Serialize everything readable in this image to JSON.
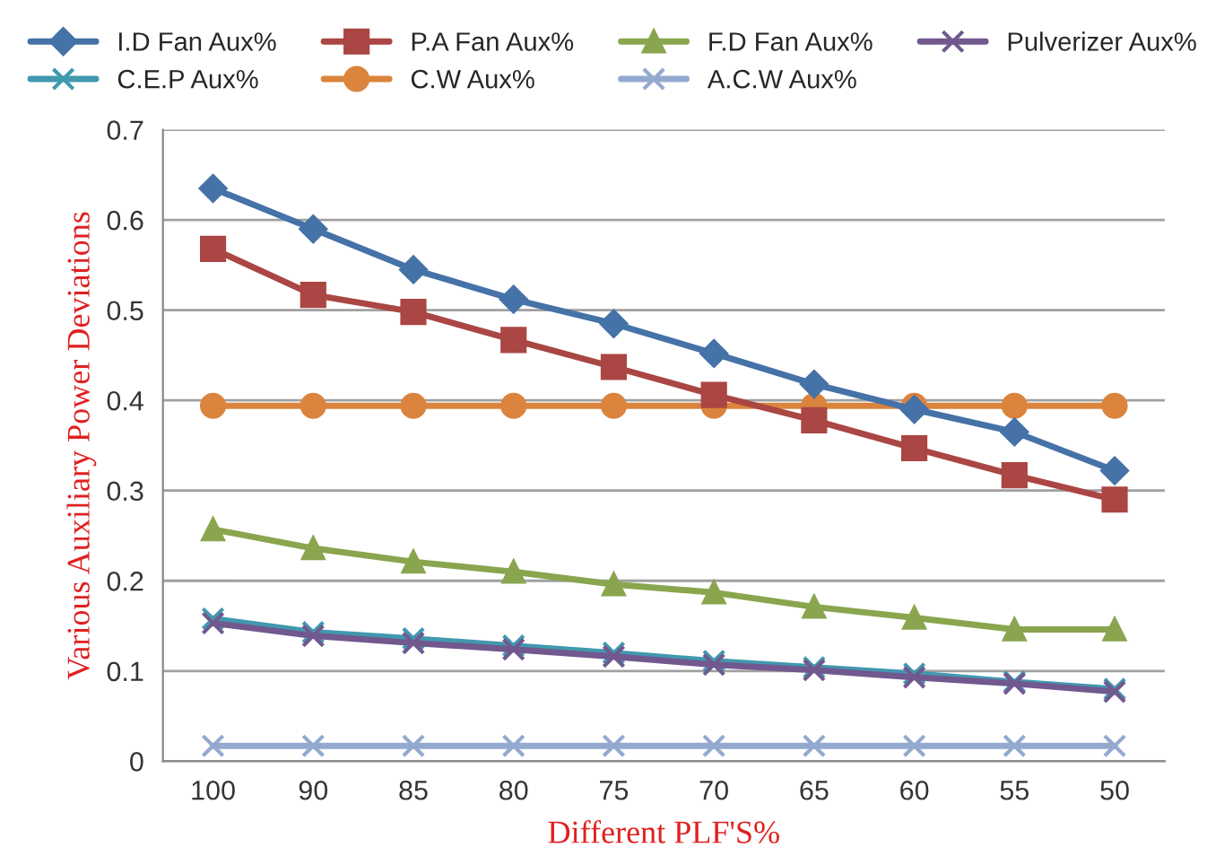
{
  "chart_data": {
    "type": "line",
    "xlabel": "Different PLF'S%",
    "ylabel": "Various Auxiliary Power Deviations",
    "categories": [
      "100",
      "90",
      "85",
      "80",
      "75",
      "70",
      "65",
      "60",
      "55",
      "50"
    ],
    "series": [
      {
        "name": "I.D Fan Aux%",
        "color": "#4572a7",
        "marker": "diamond",
        "values": [
          0.635,
          0.59,
          0.545,
          0.512,
          0.485,
          0.452,
          0.418,
          0.39,
          0.365,
          0.322
        ]
      },
      {
        "name": "P.A Fan Aux%",
        "color": "#aa4643",
        "marker": "square",
        "values": [
          0.568,
          0.517,
          0.498,
          0.467,
          0.437,
          0.406,
          0.378,
          0.347,
          0.317,
          0.29
        ]
      },
      {
        "name": "F.D Fan Aux%",
        "color": "#89a54e",
        "marker": "triangle",
        "values": [
          0.257,
          0.236,
          0.221,
          0.21,
          0.196,
          0.187,
          0.171,
          0.159,
          0.146,
          0.146
        ]
      },
      {
        "name": "Pulverizer Aux%",
        "color": "#71588f",
        "marker": "cross",
        "values": [
          0.153,
          0.139,
          0.131,
          0.124,
          0.116,
          0.107,
          0.101,
          0.093,
          0.086,
          0.077
        ]
      },
      {
        "name": "C.E.P Aux%",
        "color": "#4198af",
        "marker": "cross",
        "values": [
          0.158,
          0.143,
          0.136,
          0.128,
          0.12,
          0.111,
          0.104,
          0.097,
          0.088,
          0.08
        ]
      },
      {
        "name": "C.W Aux%",
        "color": "#db843d",
        "marker": "circle",
        "values": [
          0.394,
          0.394,
          0.394,
          0.394,
          0.394,
          0.394,
          0.394,
          0.394,
          0.394,
          0.394
        ]
      },
      {
        "name": "A.C.W Aux%",
        "color": "#93a9cf",
        "marker": "cross",
        "values": [
          0.017,
          0.017,
          0.017,
          0.017,
          0.017,
          0.017,
          0.017,
          0.017,
          0.017,
          0.017
        ]
      }
    ],
    "ylim": [
      0,
      0.7
    ],
    "yticks": [
      0,
      0.1,
      0.2,
      0.3,
      0.4,
      0.5,
      0.6,
      0.7
    ],
    "grid": "y",
    "legend": "top",
    "line_style": "solid"
  }
}
